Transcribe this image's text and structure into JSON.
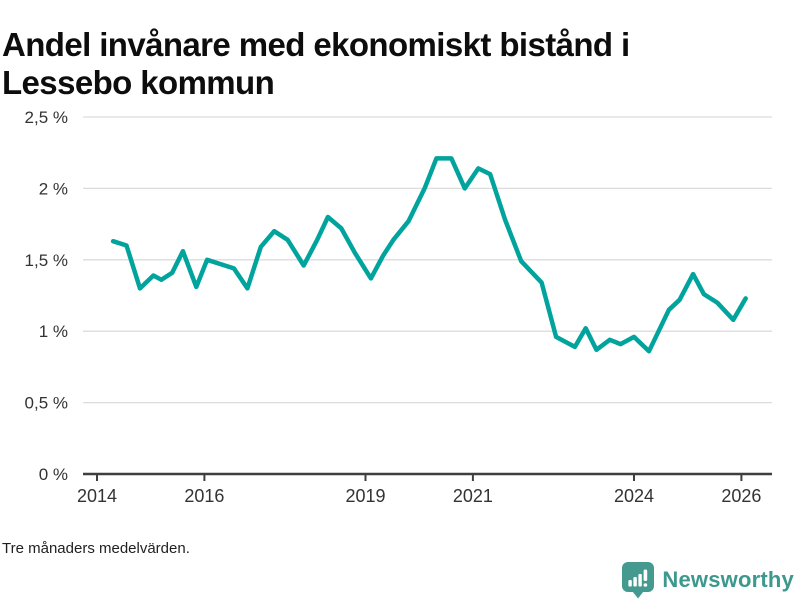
{
  "header": {
    "title": "Andel invånare med ekonomiskt bistånd i Lessebo kommun",
    "title_line1": "Andel invånare med ekonomiskt bistånd i",
    "title_line2": "Lessebo kommun"
  },
  "footer": {
    "note": "Tre månaders medelvärden."
  },
  "branding": {
    "name": "Newsworthy",
    "icon": "bar-chart-speech-bubble-icon",
    "text_color": "#3d988e",
    "icon_color": "#459a90"
  },
  "chart_data": {
    "type": "line",
    "title": "Andel invånare med ekonomiskt bistånd i Lessebo kommun",
    "note": "Tre månaders medelvärden.",
    "unit": "%",
    "line_color": "#00a49c",
    "grid_color": "#dcdcdc",
    "axis_color": "#3f3f3f",
    "grid": true,
    "legend_position": "none",
    "ylim": [
      0,
      2.5
    ],
    "xlim": [
      2013.7,
      2026.6
    ],
    "y_ticks": [
      {
        "value": 0,
        "label": "0 %"
      },
      {
        "value": 0.5,
        "label": "0,5 %"
      },
      {
        "value": 1,
        "label": "1 %"
      },
      {
        "value": 1.5,
        "label": "1,5 %"
      },
      {
        "value": 2,
        "label": "2 %"
      },
      {
        "value": 2.5,
        "label": "2,5 %"
      }
    ],
    "x_ticks": [
      {
        "value": 2014,
        "label": "2014"
      },
      {
        "value": 2016,
        "label": "2016"
      },
      {
        "value": 2019,
        "label": "2019"
      },
      {
        "value": 2021,
        "label": "2021"
      },
      {
        "value": 2024,
        "label": "2024"
      },
      {
        "value": 2026,
        "label": "2026"
      }
    ],
    "series": [
      {
        "name": "Andel invånare med ekonomiskt bistånd, Lessebo kommun",
        "x": [
          2014.3,
          2014.55,
          2014.8,
          2015.05,
          2015.2,
          2015.4,
          2015.6,
          2015.85,
          2016.05,
          2016.3,
          2016.55,
          2016.8,
          2017.05,
          2017.3,
          2017.55,
          2017.85,
          2018.1,
          2018.3,
          2018.55,
          2018.8,
          2019.1,
          2019.33,
          2019.52,
          2019.8,
          2020.1,
          2020.32,
          2020.6,
          2020.85,
          2021.1,
          2021.32,
          2021.6,
          2021.9,
          2022.28,
          2022.55,
          2022.75,
          2022.9,
          2023.1,
          2023.3,
          2023.55,
          2023.75,
          2024.0,
          2024.28,
          2024.65,
          2024.85,
          2025.1,
          2025.3,
          2025.55,
          2025.85,
          2026.08
        ],
        "values": [
          1.63,
          1.6,
          1.3,
          1.39,
          1.36,
          1.41,
          1.56,
          1.31,
          1.5,
          1.47,
          1.44,
          1.3,
          1.59,
          1.7,
          1.64,
          1.46,
          1.64,
          1.8,
          1.72,
          1.55,
          1.37,
          1.53,
          1.64,
          1.77,
          2.0,
          2.21,
          2.21,
          2.0,
          2.14,
          2.1,
          1.78,
          1.49,
          1.34,
          0.96,
          0.92,
          0.89,
          1.02,
          0.87,
          0.94,
          0.91,
          0.96,
          0.86,
          1.15,
          1.22,
          1.4,
          1.26,
          1.2,
          1.08,
          1.23
        ]
      }
    ]
  }
}
